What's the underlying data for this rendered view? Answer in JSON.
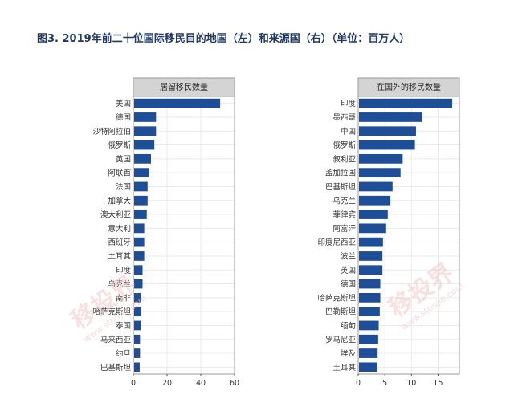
{
  "title": "图3. 2019年前二十位国际移民目的地国（左）和来源国（右）（单位：百万人）",
  "watermark": {
    "text": "移投界",
    "url": "www.stoujie.com"
  },
  "chart_data": [
    {
      "type": "bar",
      "orientation": "horizontal",
      "panel_label": "居留移民数量",
      "categories": [
        "美国",
        "德国",
        "沙特阿拉伯",
        "俄罗斯",
        "英国",
        "阿联酋",
        "法国",
        "加拿大",
        "澳大利亚",
        "意大利",
        "西班牙",
        "土耳其",
        "印度",
        "乌克兰",
        "南非",
        "哈萨克斯坦",
        "泰国",
        "马来西亚",
        "约旦",
        "巴基斯坦"
      ],
      "values": [
        51,
        13,
        13,
        12,
        10,
        9,
        8,
        8,
        7.5,
        6,
        6,
        6,
        5,
        5,
        4,
        4,
        4,
        3.5,
        3.5,
        3.3
      ],
      "xlim": [
        0,
        60
      ],
      "xticks": [
        0,
        20,
        40,
        60
      ],
      "grid": true
    },
    {
      "type": "bar",
      "orientation": "horizontal",
      "panel_label": "在国外的移民数量",
      "categories": [
        "印度",
        "墨西哥",
        "中国",
        "俄罗斯",
        "叙利亚",
        "孟加拉国",
        "巴基斯坦",
        "乌克兰",
        "菲律宾",
        "阿富汗",
        "印度尼西亚",
        "波兰",
        "英国",
        "德国",
        "哈萨克斯坦",
        "巴勒斯坦",
        "缅甸",
        "罗马尼亚",
        "埃及",
        "土耳其"
      ],
      "values": [
        17.5,
        11.8,
        10.7,
        10.5,
        8.2,
        7.8,
        6.3,
        5.9,
        5.4,
        5.1,
        4.5,
        4.4,
        4.4,
        4.0,
        4.0,
        3.9,
        3.7,
        3.6,
        3.5,
        3.4
      ],
      "xlim": [
        0,
        19
      ],
      "xticks": [
        0,
        5,
        10,
        15
      ],
      "grid": true
    }
  ]
}
